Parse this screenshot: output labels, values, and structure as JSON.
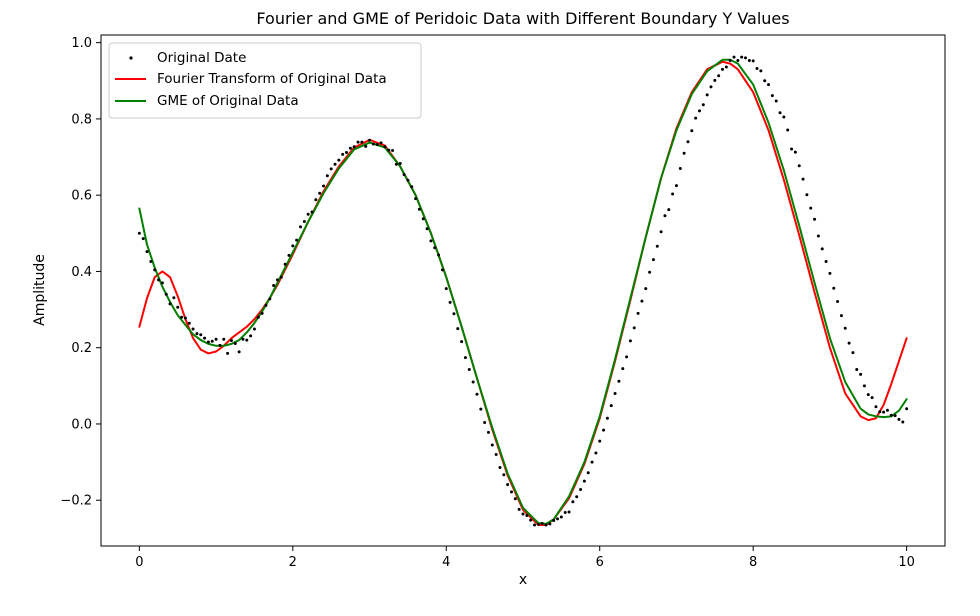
{
  "chart_data": {
    "type": "line",
    "title": "Fourier and GME of Peridoic Data with Different Boundary Y Values",
    "xlabel": "x",
    "ylabel": "Amplitude",
    "xlim": [
      -0.5,
      10.5
    ],
    "ylim": [
      -0.32,
      1.02
    ],
    "xticks": [
      0,
      2,
      4,
      6,
      8,
      10
    ],
    "xtick_labels": [
      "0",
      "2",
      "4",
      "6",
      "8",
      "10"
    ],
    "yticks": [
      -0.2,
      0.0,
      0.2,
      0.4,
      0.6,
      0.8,
      1.0
    ],
    "ytick_labels": [
      "−0.2",
      "0.0",
      "0.2",
      "0.4",
      "0.6",
      "0.8",
      "1.0"
    ],
    "grid": false,
    "legend_position": "top-left",
    "series": [
      {
        "name": "Original Date",
        "kind": "scatter",
        "color": "#000000",
        "x": [
          0.0,
          0.05,
          0.1,
          0.15,
          0.2,
          0.25,
          0.3,
          0.35,
          0.4,
          0.45,
          0.5,
          0.55,
          0.6,
          0.65,
          0.7,
          0.75,
          0.8,
          0.85,
          0.9,
          0.95,
          1.0,
          1.05,
          1.1,
          1.15,
          1.2,
          1.25,
          1.3,
          1.35,
          1.4,
          1.45,
          1.5,
          1.55,
          1.6,
          1.65,
          1.7,
          1.75,
          1.8,
          1.85,
          1.9,
          1.95,
          2.0,
          2.05,
          2.1,
          2.15,
          2.2,
          2.25,
          2.3,
          2.35,
          2.4,
          2.45,
          2.5,
          2.55,
          2.6,
          2.65,
          2.7,
          2.75,
          2.8,
          2.85,
          2.9,
          2.95,
          3.0,
          3.05,
          3.1,
          3.15,
          3.2,
          3.25,
          3.3,
          3.35,
          3.4,
          3.45,
          3.5,
          3.55,
          3.6,
          3.65,
          3.7,
          3.75,
          3.8,
          3.85,
          3.9,
          3.95,
          4.0,
          4.05,
          4.1,
          4.15,
          4.2,
          4.25,
          4.3,
          4.35,
          4.4,
          4.45,
          4.5,
          4.55,
          4.6,
          4.65,
          4.7,
          4.75,
          4.8,
          4.85,
          4.9,
          4.95,
          5.0,
          5.05,
          5.1,
          5.15,
          5.2,
          5.25,
          5.3,
          5.35,
          5.4,
          5.45,
          5.5,
          5.55,
          5.6,
          5.65,
          5.7,
          5.75,
          5.8,
          5.85,
          5.9,
          5.95,
          6.0,
          6.05,
          6.1,
          6.15,
          6.2,
          6.25,
          6.3,
          6.35,
          6.4,
          6.45,
          6.5,
          6.55,
          6.6,
          6.65,
          6.7,
          6.75,
          6.8,
          6.85,
          6.9,
          6.95,
          7.0,
          7.05,
          7.1,
          7.15,
          7.2,
          7.25,
          7.3,
          7.35,
          7.4,
          7.45,
          7.5,
          7.55,
          7.6,
          7.65,
          7.7,
          7.75,
          7.8,
          7.85,
          7.9,
          7.95,
          8.0,
          8.05,
          8.1,
          8.15,
          8.2,
          8.25,
          8.3,
          8.35,
          8.4,
          8.45,
          8.5,
          8.55,
          8.6,
          8.65,
          8.7,
          8.75,
          8.8,
          8.85,
          8.9,
          8.95,
          9.0,
          9.05,
          9.1,
          9.15,
          9.2,
          9.25,
          9.3,
          9.35,
          9.4,
          9.45,
          9.5,
          9.55,
          9.6,
          9.65,
          9.7,
          9.75,
          9.8,
          9.85,
          9.9,
          9.95,
          10.0
        ],
        "y": [
          0.5,
          0.486,
          0.452,
          0.426,
          0.404,
          0.378,
          0.37,
          0.34,
          0.315,
          0.331,
          0.306,
          0.28,
          0.278,
          0.264,
          0.249,
          0.237,
          0.234,
          0.225,
          0.215,
          0.217,
          0.222,
          0.206,
          0.222,
          0.185,
          0.219,
          0.211,
          0.189,
          0.222,
          0.22,
          0.231,
          0.249,
          0.28,
          0.29,
          0.311,
          0.328,
          0.363,
          0.378,
          0.385,
          0.419,
          0.442,
          0.467,
          0.482,
          0.517,
          0.531,
          0.55,
          0.556,
          0.588,
          0.605,
          0.624,
          0.651,
          0.669,
          0.681,
          0.692,
          0.707,
          0.712,
          0.723,
          0.727,
          0.739,
          0.739,
          0.728,
          0.744,
          0.734,
          0.733,
          0.737,
          0.727,
          0.718,
          0.717,
          0.681,
          0.683,
          0.654,
          0.639,
          0.622,
          0.591,
          0.563,
          0.538,
          0.512,
          0.48,
          0.462,
          0.443,
          0.404,
          0.355,
          0.319,
          0.289,
          0.25,
          0.216,
          0.174,
          0.143,
          0.11,
          0.078,
          0.039,
          0.004,
          -0.022,
          -0.055,
          -0.08,
          -0.114,
          -0.133,
          -0.159,
          -0.178,
          -0.196,
          -0.224,
          -0.236,
          -0.24,
          -0.252,
          -0.265,
          -0.263,
          -0.261,
          -0.265,
          -0.262,
          -0.253,
          -0.249,
          -0.244,
          -0.232,
          -0.231,
          -0.204,
          -0.191,
          -0.172,
          -0.15,
          -0.128,
          -0.1,
          -0.076,
          -0.045,
          -0.016,
          0.015,
          0.048,
          0.08,
          0.112,
          0.145,
          0.176,
          0.218,
          0.252,
          0.29,
          0.322,
          0.355,
          0.398,
          0.431,
          0.466,
          0.504,
          0.546,
          0.562,
          0.603,
          0.625,
          0.67,
          0.71,
          0.74,
          0.769,
          0.802,
          0.821,
          0.837,
          0.863,
          0.884,
          0.901,
          0.913,
          0.93,
          0.936,
          0.953,
          0.962,
          0.953,
          0.962,
          0.96,
          0.953,
          0.952,
          0.932,
          0.926,
          0.9,
          0.89,
          0.861,
          0.847,
          0.816,
          0.805,
          0.771,
          0.721,
          0.713,
          0.677,
          0.642,
          0.601,
          0.566,
          0.537,
          0.493,
          0.459,
          0.426,
          0.395,
          0.356,
          0.321,
          0.284,
          0.251,
          0.212,
          0.187,
          0.143,
          0.13,
          0.1,
          0.077,
          0.069,
          0.045,
          0.032,
          0.031,
          0.036,
          0.023,
          0.022,
          0.012,
          0.005,
          0.04
        ]
      },
      {
        "name": "Fourier Transform of Original Data",
        "kind": "line",
        "color": "#ff0000",
        "x": [
          0.0,
          0.1,
          0.2,
          0.3,
          0.4,
          0.5,
          0.6,
          0.7,
          0.8,
          0.9,
          1.0,
          1.1,
          1.2,
          1.3,
          1.4,
          1.5,
          1.6,
          1.7,
          1.8,
          1.9,
          2.0,
          2.2,
          2.4,
          2.6,
          2.8,
          3.0,
          3.2,
          3.4,
          3.6,
          3.8,
          4.0,
          4.2,
          4.4,
          4.6,
          4.8,
          5.0,
          5.2,
          5.3,
          5.4,
          5.6,
          5.8,
          6.0,
          6.2,
          6.4,
          6.6,
          6.8,
          7.0,
          7.2,
          7.4,
          7.6,
          7.7,
          7.8,
          8.0,
          8.2,
          8.4,
          8.6,
          8.8,
          9.0,
          9.2,
          9.4,
          9.5,
          9.6,
          9.7,
          9.8,
          9.9,
          10.0
        ],
        "y": [
          0.255,
          0.33,
          0.385,
          0.4,
          0.385,
          0.335,
          0.275,
          0.225,
          0.195,
          0.185,
          0.19,
          0.205,
          0.225,
          0.24,
          0.255,
          0.275,
          0.3,
          0.33,
          0.365,
          0.405,
          0.445,
          0.53,
          0.61,
          0.675,
          0.725,
          0.745,
          0.73,
          0.675,
          0.6,
          0.5,
          0.385,
          0.255,
          0.12,
          -0.015,
          -0.135,
          -0.225,
          -0.265,
          -0.265,
          -0.25,
          -0.195,
          -0.105,
          0.015,
          0.165,
          0.325,
          0.49,
          0.645,
          0.775,
          0.87,
          0.93,
          0.95,
          0.945,
          0.93,
          0.87,
          0.77,
          0.64,
          0.495,
          0.345,
          0.2,
          0.08,
          0.02,
          0.01,
          0.015,
          0.05,
          0.105,
          0.165,
          0.225
        ]
      },
      {
        "name": "GME of Original Data",
        "kind": "line",
        "color": "#008000",
        "x": [
          0.0,
          0.1,
          0.2,
          0.3,
          0.4,
          0.5,
          0.6,
          0.7,
          0.8,
          0.9,
          1.0,
          1.1,
          1.2,
          1.3,
          1.4,
          1.5,
          1.6,
          1.7,
          1.8,
          1.9,
          2.0,
          2.2,
          2.4,
          2.6,
          2.8,
          3.0,
          3.2,
          3.4,
          3.6,
          3.8,
          4.0,
          4.2,
          4.4,
          4.6,
          4.8,
          5.0,
          5.2,
          5.3,
          5.4,
          5.6,
          5.8,
          6.0,
          6.2,
          6.4,
          6.6,
          6.8,
          7.0,
          7.2,
          7.4,
          7.6,
          7.7,
          7.8,
          8.0,
          8.2,
          8.4,
          8.6,
          8.8,
          9.0,
          9.2,
          9.4,
          9.5,
          9.6,
          9.7,
          9.8,
          9.9,
          10.0
        ],
        "y": [
          0.565,
          0.47,
          0.41,
          0.36,
          0.32,
          0.285,
          0.26,
          0.235,
          0.22,
          0.21,
          0.205,
          0.205,
          0.21,
          0.22,
          0.24,
          0.265,
          0.295,
          0.33,
          0.37,
          0.41,
          0.45,
          0.53,
          0.605,
          0.67,
          0.72,
          0.738,
          0.725,
          0.675,
          0.6,
          0.5,
          0.385,
          0.255,
          0.12,
          -0.01,
          -0.13,
          -0.22,
          -0.26,
          -0.262,
          -0.25,
          -0.19,
          -0.1,
          0.02,
          0.17,
          0.33,
          0.49,
          0.645,
          0.77,
          0.865,
          0.925,
          0.955,
          0.955,
          0.945,
          0.89,
          0.79,
          0.665,
          0.52,
          0.37,
          0.225,
          0.11,
          0.04,
          0.025,
          0.02,
          0.018,
          0.02,
          0.035,
          0.065
        ]
      }
    ]
  }
}
